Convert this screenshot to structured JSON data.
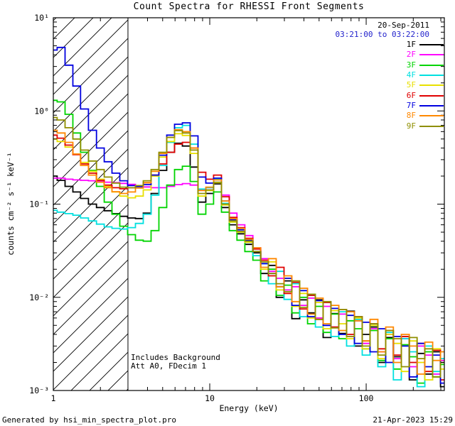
{
  "header": {
    "title": "Count Spectra for RHESSI Front Segments"
  },
  "annotations": {
    "date": "20-Sep-2011",
    "time_range": "03:21:00 to 03:22:00",
    "time_color": "#2222cc",
    "background_note": "Includes Background",
    "att_note": "Att A0, FDecim 1"
  },
  "footer": {
    "generated_by": "Generated by hsi_min_spectra_plot.pro",
    "timestamp": "21-Apr-2023 15:29"
  },
  "chart_data": {
    "type": "line",
    "title": "Count Spectra for RHESSI Front Segments",
    "xlabel": "Energy (keV)",
    "ylabel": "counts cm⁻² s⁻¹ keV⁻¹",
    "xscale": "log",
    "yscale": "log",
    "xlim": [
      1,
      316
    ],
    "ylim": [
      0.001,
      10
    ],
    "grid": false,
    "legend_position": "top-right",
    "hatch_region_kev": [
      1,
      3
    ],
    "xticks": [
      {
        "value": 1,
        "label": "1"
      },
      {
        "value": 10,
        "label": "10"
      },
      {
        "value": 100,
        "label": "100"
      }
    ],
    "yticks": [
      {
        "value": 10,
        "label": "10¹"
      },
      {
        "value": 1,
        "label": "10⁰"
      },
      {
        "value": 0.1,
        "label": "10⁻¹"
      },
      {
        "value": 0.01,
        "label": "10⁻²"
      },
      {
        "value": 0.001,
        "label": "10⁻³"
      }
    ],
    "x": [
      1.0,
      1.12,
      1.26,
      1.41,
      1.58,
      1.78,
      2.0,
      2.24,
      2.51,
      2.82,
      3.16,
      3.55,
      3.98,
      4.47,
      5.01,
      5.62,
      6.31,
      7.08,
      7.94,
      8.91,
      10.0,
      11.2,
      12.6,
      14.1,
      15.8,
      17.8,
      20.0,
      22.4,
      25.1,
      28.2,
      31.6,
      35.5,
      39.8,
      44.7,
      50.1,
      56.2,
      63.1,
      70.8,
      79.4,
      89.1,
      100,
      112,
      126,
      141,
      158,
      178,
      200,
      224,
      251,
      282,
      316
    ],
    "series": [
      {
        "name": "1F",
        "color": "#000000",
        "values": [
          0.2,
          0.18,
          0.155,
          0.135,
          0.115,
          0.1,
          0.092,
          0.085,
          0.079,
          0.074,
          0.071,
          0.07,
          0.08,
          0.13,
          0.23,
          0.36,
          0.45,
          0.42,
          0.25,
          0.105,
          0.13,
          0.165,
          0.092,
          0.06,
          0.048,
          0.037,
          0.03,
          0.018,
          0.022,
          0.01,
          0.015,
          0.0059,
          0.0094,
          0.0068,
          0.0094,
          0.0037,
          0.0067,
          0.0041,
          0.0071,
          0.003,
          0.004,
          0.0048,
          0.002,
          0.0037,
          0.0023,
          0.0038,
          0.0013,
          0.0025,
          0.0015,
          0.0026,
          0.0011
        ]
      },
      {
        "name": "2F",
        "color": "#ff00ff",
        "values": [
          0.19,
          0.19,
          0.185,
          0.182,
          0.18,
          0.178,
          0.175,
          0.172,
          0.17,
          0.167,
          0.163,
          0.158,
          0.153,
          0.15,
          0.15,
          0.155,
          0.162,
          0.166,
          0.16,
          0.142,
          0.15,
          0.19,
          0.125,
          0.08,
          0.06,
          0.046,
          0.034,
          0.026,
          0.019,
          0.016,
          0.012,
          0.013,
          0.0082,
          0.0098,
          0.006,
          0.008,
          0.0048,
          0.0066,
          0.0038,
          0.0056,
          0.0032,
          0.0046,
          0.0026,
          0.004,
          0.0022,
          0.0036,
          0.0018,
          0.003,
          0.0024,
          0.0015,
          0.0021
        ]
      },
      {
        "name": "3F",
        "color": "#00d400",
        "values": [
          1.3,
          1.25,
          0.92,
          0.58,
          0.36,
          0.23,
          0.155,
          0.105,
          0.078,
          0.058,
          0.047,
          0.041,
          0.04,
          0.052,
          0.092,
          0.16,
          0.235,
          0.255,
          0.175,
          0.078,
          0.1,
          0.135,
          0.082,
          0.052,
          0.041,
          0.031,
          0.025,
          0.015,
          0.02,
          0.0105,
          0.0135,
          0.0068,
          0.01,
          0.0052,
          0.008,
          0.0042,
          0.0066,
          0.0036,
          0.0056,
          0.0046,
          0.0028,
          0.0044,
          0.0021,
          0.0036,
          0.0017,
          0.0031,
          0.0023,
          0.0012,
          0.0026,
          0.0014,
          0.0019
        ]
      },
      {
        "name": "4F",
        "color": "#00e0e0",
        "values": [
          0.086,
          0.082,
          0.079,
          0.076,
          0.071,
          0.066,
          0.061,
          0.057,
          0.055,
          0.054,
          0.056,
          0.062,
          0.078,
          0.125,
          0.26,
          0.46,
          0.66,
          0.7,
          0.44,
          0.145,
          0.15,
          0.185,
          0.102,
          0.064,
          0.05,
          0.039,
          0.028,
          0.023,
          0.014,
          0.019,
          0.0095,
          0.014,
          0.0062,
          0.0105,
          0.0048,
          0.0088,
          0.0038,
          0.007,
          0.003,
          0.0058,
          0.0024,
          0.005,
          0.0018,
          0.0042,
          0.0013,
          0.0036,
          0.0026,
          0.0011,
          0.003,
          0.0016,
          0.0022
        ]
      },
      {
        "name": "5F",
        "color": "#e8e000",
        "values": [
          0.5,
          0.47,
          0.41,
          0.34,
          0.28,
          0.225,
          0.185,
          0.155,
          0.135,
          0.122,
          0.117,
          0.122,
          0.142,
          0.2,
          0.32,
          0.47,
          0.57,
          0.545,
          0.35,
          0.122,
          0.14,
          0.17,
          0.098,
          0.064,
          0.05,
          0.039,
          0.031,
          0.02,
          0.024,
          0.012,
          0.016,
          0.008,
          0.011,
          0.006,
          0.0088,
          0.0046,
          0.0072,
          0.0052,
          0.0036,
          0.006,
          0.0028,
          0.005,
          0.0022,
          0.004,
          0.0032,
          0.0016,
          0.0034,
          0.002,
          0.0013,
          0.0028,
          0.0017
        ]
      },
      {
        "name": "6F",
        "color": "#e00000",
        "values": [
          0.55,
          0.51,
          0.43,
          0.34,
          0.27,
          0.215,
          0.18,
          0.16,
          0.15,
          0.146,
          0.15,
          0.158,
          0.17,
          0.205,
          0.27,
          0.36,
          0.44,
          0.46,
          0.4,
          0.22,
          0.185,
          0.205,
          0.12,
          0.072,
          0.056,
          0.043,
          0.033,
          0.025,
          0.017,
          0.021,
          0.011,
          0.0145,
          0.0075,
          0.0105,
          0.0058,
          0.0088,
          0.0048,
          0.0074,
          0.004,
          0.0062,
          0.0034,
          0.0052,
          0.0028,
          0.0044,
          0.0024,
          0.0038,
          0.002,
          0.0032,
          0.0016,
          0.0027,
          0.0013
        ]
      },
      {
        "name": "7F",
        "color": "#0000e0",
        "values": [
          4.5,
          4.8,
          3.1,
          1.85,
          1.05,
          0.62,
          0.4,
          0.285,
          0.215,
          0.178,
          0.158,
          0.154,
          0.162,
          0.205,
          0.335,
          0.55,
          0.72,
          0.745,
          0.54,
          0.195,
          0.168,
          0.19,
          0.108,
          0.068,
          0.053,
          0.041,
          0.031,
          0.023,
          0.018,
          0.013,
          0.016,
          0.0082,
          0.0118,
          0.0062,
          0.0092,
          0.005,
          0.0076,
          0.004,
          0.0064,
          0.0032,
          0.0054,
          0.0026,
          0.0046,
          0.002,
          0.0038,
          0.003,
          0.0014,
          0.0032,
          0.0018,
          0.0024,
          0.0012
        ]
      },
      {
        "name": "8F",
        "color": "#ff8800",
        "values": [
          0.62,
          0.58,
          0.46,
          0.345,
          0.26,
          0.205,
          0.172,
          0.15,
          0.136,
          0.13,
          0.135,
          0.149,
          0.17,
          0.225,
          0.35,
          0.52,
          0.63,
          0.6,
          0.4,
          0.14,
          0.152,
          0.182,
          0.108,
          0.07,
          0.055,
          0.042,
          0.034,
          0.021,
          0.026,
          0.013,
          0.017,
          0.009,
          0.0125,
          0.0066,
          0.0098,
          0.0052,
          0.0082,
          0.0044,
          0.007,
          0.0056,
          0.0034,
          0.0058,
          0.0026,
          0.0048,
          0.002,
          0.004,
          0.003,
          0.0015,
          0.0033,
          0.0021,
          0.0026
        ]
      },
      {
        "name": "9F",
        "color": "#8f8f00",
        "values": [
          0.85,
          0.8,
          0.66,
          0.5,
          0.38,
          0.29,
          0.235,
          0.195,
          0.168,
          0.152,
          0.15,
          0.158,
          0.178,
          0.235,
          0.36,
          0.52,
          0.615,
          0.58,
          0.38,
          0.13,
          0.142,
          0.172,
          0.1,
          0.066,
          0.051,
          0.04,
          0.031,
          0.024,
          0.018,
          0.014,
          0.0115,
          0.015,
          0.0078,
          0.0108,
          0.0058,
          0.009,
          0.0047,
          0.0074,
          0.0038,
          0.0062,
          0.003,
          0.0052,
          0.0024,
          0.0044,
          0.0036,
          0.0018,
          0.0037,
          0.0022,
          0.0028,
          0.0014,
          0.002
        ]
      }
    ]
  }
}
